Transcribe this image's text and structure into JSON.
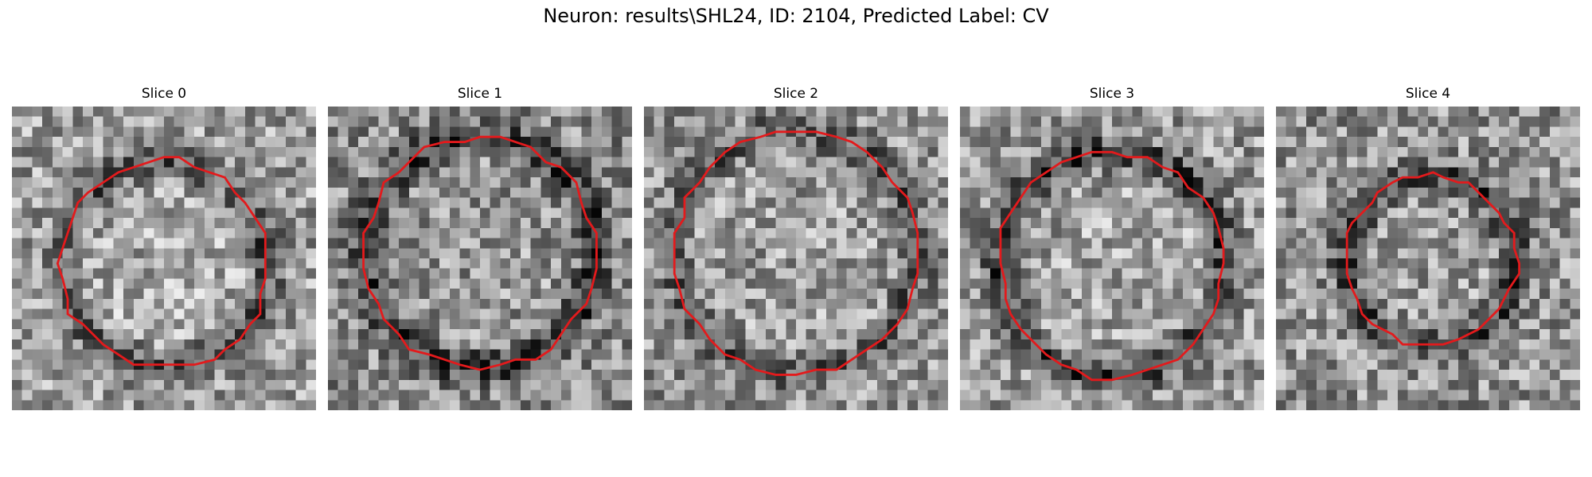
{
  "figure": {
    "title": "Neuron: results\\SHL24, ID: 2104, Predicted Label: CV"
  },
  "panels": [
    {
      "title": "Slice 0",
      "seed": 11,
      "contour_color": "#e31a1c",
      "cell_center": [
        0.5,
        0.52
      ],
      "cell_radius": 0.34,
      "mean": 0.62,
      "ring_dark": 0.3
    },
    {
      "title": "Slice 1",
      "seed": 23,
      "contour_color": "#e31a1c",
      "cell_center": [
        0.5,
        0.48
      ],
      "cell_radius": 0.38,
      "mean": 0.55,
      "ring_dark": 0.32
    },
    {
      "title": "Slice 2",
      "seed": 37,
      "contour_color": "#e31a1c",
      "cell_center": [
        0.5,
        0.48
      ],
      "cell_radius": 0.4,
      "mean": 0.58,
      "ring_dark": 0.22
    },
    {
      "title": "Slice 3",
      "seed": 51,
      "contour_color": "#e31a1c",
      "cell_center": [
        0.5,
        0.52
      ],
      "cell_radius": 0.37,
      "mean": 0.6,
      "ring_dark": 0.35
    },
    {
      "title": "Slice 4",
      "seed": 67,
      "contour_color": "#e31a1c",
      "cell_center": [
        0.51,
        0.51
      ],
      "cell_radius": 0.28,
      "mean": 0.58,
      "ring_dark": 0.3
    }
  ]
}
